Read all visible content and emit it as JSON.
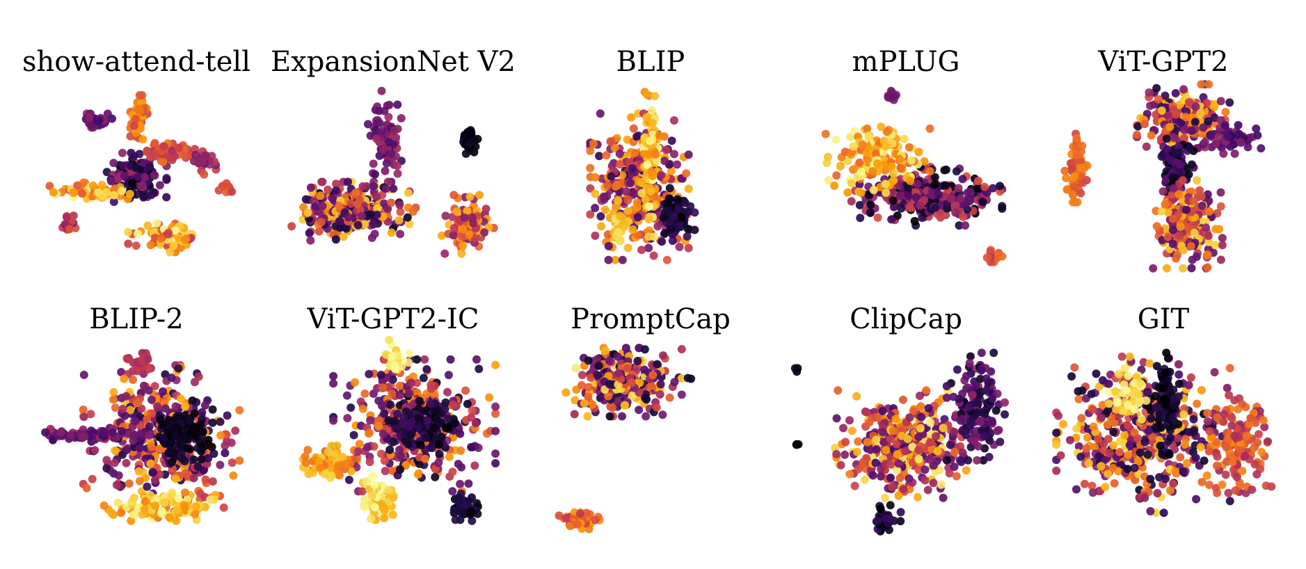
{
  "colormap": {
    "name": "inferno",
    "stops": [
      "#000004",
      "#1b0c41",
      "#4a0c6b",
      "#781c6d",
      "#a52c60",
      "#cf4446",
      "#ed6925",
      "#fb9b06",
      "#f7d13d",
      "#fcffa4"
    ]
  },
  "chart_data": [
    {
      "type": "scatter",
      "title": "show-attend-tell",
      "clusters": [
        {
          "cx": 0.48,
          "cy": 0.5,
          "rx": 0.11,
          "ry": 0.1,
          "n": 140,
          "c": [
            0.0,
            0.45
          ]
        },
        {
          "cx": 0.5,
          "cy": 0.18,
          "rx": 0.03,
          "ry": 0.09,
          "n": 50,
          "c": [
            0.55,
            0.8
          ]
        },
        {
          "cx": 0.28,
          "cy": 0.58,
          "rx": 0.14,
          "ry": 0.04,
          "n": 60,
          "c": [
            0.6,
            1.0
          ]
        },
        {
          "cx": 0.62,
          "cy": 0.36,
          "rx": 0.1,
          "ry": 0.05,
          "n": 60,
          "c": [
            0.45,
            0.7
          ]
        },
        {
          "cx": 0.3,
          "cy": 0.2,
          "rx": 0.06,
          "ry": 0.03,
          "n": 40,
          "c": [
            0.2,
            0.4
          ]
        },
        {
          "cx": 0.62,
          "cy": 0.82,
          "rx": 0.13,
          "ry": 0.06,
          "n": 90,
          "c": [
            0.5,
            1.0
          ]
        },
        {
          "cx": 0.78,
          "cy": 0.42,
          "rx": 0.05,
          "ry": 0.06,
          "n": 30,
          "c": [
            0.3,
            0.6
          ]
        },
        {
          "cx": 0.18,
          "cy": 0.75,
          "rx": 0.04,
          "ry": 0.04,
          "n": 15,
          "c": [
            0.3,
            0.6
          ]
        },
        {
          "cx": 0.88,
          "cy": 0.55,
          "rx": 0.04,
          "ry": 0.03,
          "n": 12,
          "c": [
            0.5,
            0.7
          ]
        }
      ]
    },
    {
      "type": "scatter",
      "title": "ExpansionNet V2",
      "clusters": [
        {
          "cx": 0.3,
          "cy": 0.68,
          "rx": 0.22,
          "ry": 0.12,
          "n": 260,
          "c": [
            0.05,
            0.9
          ]
        },
        {
          "cx": 0.45,
          "cy": 0.3,
          "rx": 0.06,
          "ry": 0.2,
          "n": 80,
          "c": [
            0.2,
            0.45
          ]
        },
        {
          "cx": 0.82,
          "cy": 0.75,
          "rx": 0.09,
          "ry": 0.12,
          "n": 100,
          "c": [
            0.35,
            0.85
          ]
        },
        {
          "cx": 0.83,
          "cy": 0.3,
          "rx": 0.03,
          "ry": 0.06,
          "n": 45,
          "c": [
            0.0,
            0.08
          ]
        }
      ]
    },
    {
      "type": "scatter",
      "title": "BLIP",
      "clusters": [
        {
          "cx": 0.45,
          "cy": 0.55,
          "rx": 0.17,
          "ry": 0.3,
          "n": 340,
          "c": [
            0.15,
            0.85
          ]
        },
        {
          "cx": 0.5,
          "cy": 0.4,
          "rx": 0.03,
          "ry": 0.32,
          "n": 90,
          "c": [
            0.7,
            1.0
          ]
        },
        {
          "cx": 0.62,
          "cy": 0.7,
          "rx": 0.06,
          "ry": 0.12,
          "n": 70,
          "c": [
            0.0,
            0.2
          ]
        },
        {
          "cx": 0.36,
          "cy": 0.78,
          "rx": 0.03,
          "ry": 0.1,
          "n": 25,
          "c": [
            0.8,
            1.0
          ]
        }
      ]
    },
    {
      "type": "scatter",
      "title": "mPLUG",
      "clusters": [
        {
          "cx": 0.6,
          "cy": 0.6,
          "rx": 0.26,
          "ry": 0.12,
          "n": 280,
          "c": [
            0.0,
            0.6
          ]
        },
        {
          "cx": 0.38,
          "cy": 0.4,
          "rx": 0.18,
          "ry": 0.14,
          "n": 160,
          "c": [
            0.65,
            1.0
          ]
        },
        {
          "cx": 0.44,
          "cy": 0.06,
          "rx": 0.02,
          "ry": 0.03,
          "n": 12,
          "c": [
            0.25,
            0.4
          ]
        },
        {
          "cx": 0.9,
          "cy": 0.92,
          "rx": 0.04,
          "ry": 0.04,
          "n": 12,
          "c": [
            0.5,
            0.7
          ]
        }
      ]
    },
    {
      "type": "scatter",
      "title": "ViT-GPT2",
      "clusters": [
        {
          "cx": 0.58,
          "cy": 0.2,
          "rx": 0.16,
          "ry": 0.15,
          "n": 200,
          "c": [
            0.1,
            0.9
          ]
        },
        {
          "cx": 0.55,
          "cy": 0.45,
          "rx": 0.06,
          "ry": 0.12,
          "n": 90,
          "c": [
            0.0,
            0.3
          ]
        },
        {
          "cx": 0.6,
          "cy": 0.75,
          "rx": 0.12,
          "ry": 0.18,
          "n": 200,
          "c": [
            0.2,
            0.9
          ]
        },
        {
          "cx": 0.8,
          "cy": 0.3,
          "rx": 0.1,
          "ry": 0.06,
          "n": 60,
          "c": [
            0.15,
            0.4
          ]
        },
        {
          "cx": 0.1,
          "cy": 0.45,
          "rx": 0.04,
          "ry": 0.14,
          "n": 60,
          "c": [
            0.55,
            0.75
          ]
        }
      ]
    },
    {
      "type": "scatter",
      "title": "BLIP-2",
      "clusters": [
        {
          "cx": 0.6,
          "cy": 0.52,
          "rx": 0.27,
          "ry": 0.3,
          "n": 420,
          "c": [
            0.1,
            0.85
          ]
        },
        {
          "cx": 0.7,
          "cy": 0.5,
          "rx": 0.1,
          "ry": 0.14,
          "n": 100,
          "c": [
            0.0,
            0.1
          ]
        },
        {
          "cx": 0.25,
          "cy": 0.5,
          "rx": 0.2,
          "ry": 0.03,
          "n": 70,
          "c": [
            0.2,
            0.45
          ]
        },
        {
          "cx": 0.6,
          "cy": 0.88,
          "rx": 0.2,
          "ry": 0.06,
          "n": 110,
          "c": [
            0.7,
            1.0
          ]
        },
        {
          "cx": 0.5,
          "cy": 0.1,
          "rx": 0.05,
          "ry": 0.06,
          "n": 30,
          "c": [
            0.4,
            0.55
          ]
        }
      ]
    },
    {
      "type": "scatter",
      "title": "ViT-GPT2-IC",
      "clusters": [
        {
          "cx": 0.58,
          "cy": 0.45,
          "rx": 0.28,
          "ry": 0.27,
          "n": 400,
          "c": [
            0.05,
            0.8
          ]
        },
        {
          "cx": 0.6,
          "cy": 0.45,
          "rx": 0.12,
          "ry": 0.1,
          "n": 90,
          "c": [
            0.0,
            0.2
          ]
        },
        {
          "cx": 0.2,
          "cy": 0.65,
          "rx": 0.1,
          "ry": 0.07,
          "n": 70,
          "c": [
            0.65,
            0.9
          ]
        },
        {
          "cx": 0.42,
          "cy": 0.85,
          "rx": 0.06,
          "ry": 0.1,
          "n": 70,
          "c": [
            0.8,
            1.0
          ]
        },
        {
          "cx": 0.5,
          "cy": 0.1,
          "rx": 0.05,
          "ry": 0.08,
          "n": 30,
          "c": [
            0.88,
            1.0
          ]
        },
        {
          "cx": 0.8,
          "cy": 0.88,
          "rx": 0.05,
          "ry": 0.06,
          "n": 40,
          "c": [
            0.0,
            0.15
          ]
        }
      ]
    },
    {
      "type": "scatter",
      "title": "PromptCap",
      "clusters": [
        {
          "cx": 0.38,
          "cy": 0.22,
          "rx": 0.2,
          "ry": 0.14,
          "n": 260,
          "c": [
            0.05,
            0.95
          ]
        },
        {
          "cx": 0.18,
          "cy": 0.95,
          "rx": 0.07,
          "ry": 0.04,
          "n": 40,
          "c": [
            0.5,
            0.8
          ]
        },
        {
          "cx": 0.67,
          "cy": 0.2,
          "rx": 0.01,
          "ry": 0.01,
          "n": 2,
          "c": [
            0.0,
            0.1
          ]
        }
      ]
    },
    {
      "type": "scatter",
      "title": "ClipCap",
      "clusters": [
        {
          "cx": 0.5,
          "cy": 0.55,
          "rx": 0.24,
          "ry": 0.22,
          "n": 380,
          "c": [
            0.2,
            0.95
          ]
        },
        {
          "cx": 0.82,
          "cy": 0.35,
          "rx": 0.1,
          "ry": 0.22,
          "n": 150,
          "c": [
            0.05,
            0.4
          ]
        },
        {
          "cx": 0.42,
          "cy": 0.95,
          "rx": 0.05,
          "ry": 0.06,
          "n": 40,
          "c": [
            0.0,
            0.2
          ]
        },
        {
          "cx": 0.02,
          "cy": 0.15,
          "rx": 0.01,
          "ry": 0.02,
          "n": 3,
          "c": [
            0.0,
            0.05
          ]
        },
        {
          "cx": 0.02,
          "cy": 0.55,
          "rx": 0.01,
          "ry": 0.02,
          "n": 3,
          "c": [
            0.0,
            0.05
          ]
        }
      ]
    },
    {
      "type": "scatter",
      "title": "GIT",
      "clusters": [
        {
          "cx": 0.4,
          "cy": 0.5,
          "rx": 0.3,
          "ry": 0.32,
          "n": 420,
          "c": [
            0.05,
            0.9
          ]
        },
        {
          "cx": 0.5,
          "cy": 0.35,
          "rx": 0.06,
          "ry": 0.22,
          "n": 80,
          "c": [
            0.0,
            0.15
          ]
        },
        {
          "cx": 0.82,
          "cy": 0.55,
          "rx": 0.12,
          "ry": 0.2,
          "n": 140,
          "c": [
            0.4,
            0.75
          ]
        },
        {
          "cx": 0.35,
          "cy": 0.3,
          "rx": 0.08,
          "ry": 0.12,
          "n": 50,
          "c": [
            0.85,
            1.0
          ]
        }
      ]
    }
  ]
}
